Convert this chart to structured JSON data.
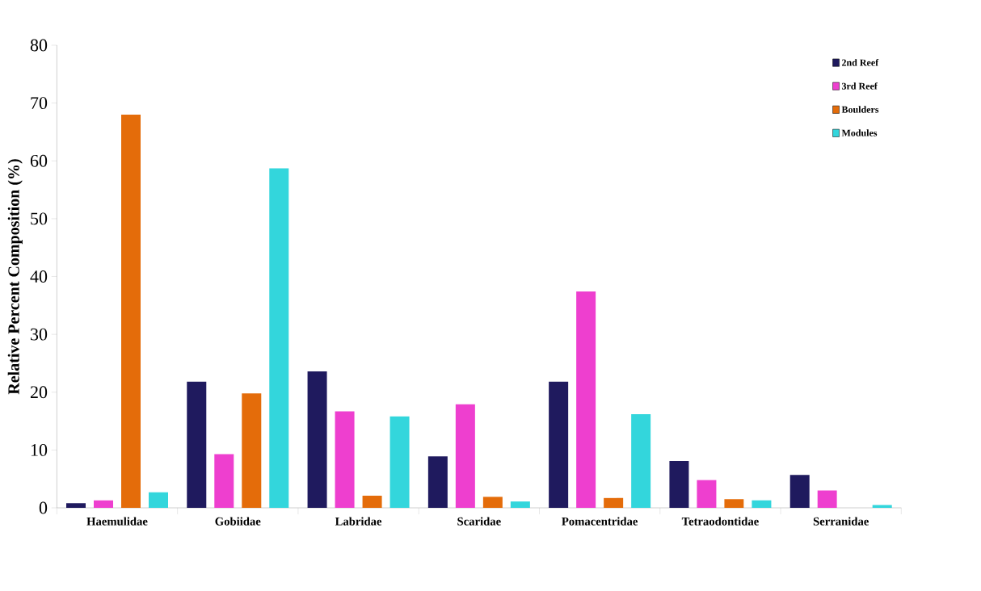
{
  "chart_data": {
    "type": "bar",
    "ylabel": "Relative Percent Composition (%)",
    "categories": [
      "Haemulidae",
      "Gobiidae",
      "Labridae",
      "Scaridae",
      "Pomacentridae",
      "Tetraodontidae",
      "Serranidae"
    ],
    "series": [
      {
        "name": "2nd Reef",
        "color": "#1f1a5e",
        "values": [
          0.8,
          21.8,
          23.6,
          8.9,
          21.8,
          8.1,
          5.7
        ]
      },
      {
        "name": "3rd Reef",
        "color": "#ee3fcf",
        "values": [
          1.3,
          9.3,
          16.7,
          17.9,
          37.4,
          4.8,
          3.0
        ]
      },
      {
        "name": "Boulders",
        "color": "#e46c0a",
        "values": [
          68.0,
          19.8,
          2.1,
          1.9,
          1.7,
          1.5,
          null
        ]
      },
      {
        "name": "Modules",
        "color": "#33d6dc",
        "values": [
          2.7,
          58.7,
          15.8,
          1.1,
          16.2,
          1.3,
          0.5
        ]
      }
    ],
    "ylim": [
      0,
      80
    ],
    "yticks": [
      0,
      10,
      20,
      30,
      40,
      50,
      60,
      70,
      80
    ],
    "grid": false,
    "legend": "top right"
  }
}
